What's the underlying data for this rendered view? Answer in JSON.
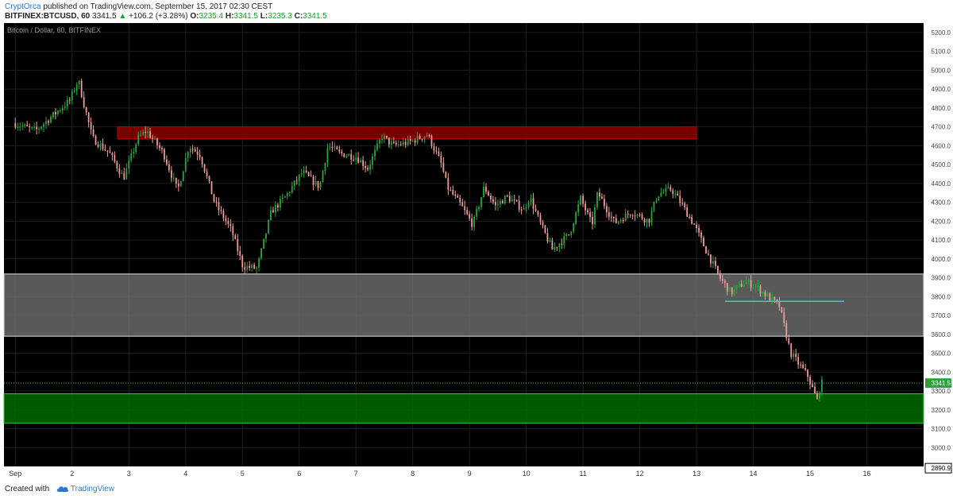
{
  "header": {
    "author": "CryptOrca",
    "published_text": " published on TradingView.com, September 15, 2017 02:30 CEST",
    "symbol": "BITFINEX:BTCUSD, 60",
    "last": "3341.5",
    "change_arrow": "▲",
    "change": "+106.2 (+3.28%)",
    "o_label": "O:",
    "o_value": "3235.4",
    "h_label": "H:",
    "h_value": "3341.5",
    "l_label": "L:",
    "l_value": "3235.3",
    "c_label": "C:",
    "c_value": "3341.5"
  },
  "footer": {
    "created_with": "Created with",
    "brand": "TradingView",
    "logo_icon": "tradingview-cloud-icon"
  },
  "colors": {
    "background": "#000000",
    "bull": "#26a83a",
    "bear": "#f29b9b",
    "resistance_zone": "#8e0000",
    "support_zone": "#006b00",
    "range_zone": "#6f6f6f",
    "cyan_line": "#33cce0",
    "accent_blue": "#2b78d6"
  },
  "chart_data": {
    "type": "candlestick",
    "title": "Bitcoin / Dollar, 60, BITFINEX",
    "ylim": [
      2900,
      5250
    ],
    "y_ticks": [
      "5200.0",
      "5100.0",
      "5000.0",
      "4900.0",
      "4800.0",
      "4700.0",
      "4600.0",
      "4500.0",
      "4400.0",
      "4300.0",
      "4200.0",
      "4100.0",
      "4000.0",
      "3900.0",
      "3800.0",
      "3700.0",
      "3600.0",
      "3500.0",
      "3400.0",
      "3300.0",
      "3200.0",
      "3100.0",
      "3000.0"
    ],
    "x_labels": [
      {
        "day": 0,
        "label": "Sep"
      },
      {
        "day": 1,
        "label": "2"
      },
      {
        "day": 2,
        "label": "3"
      },
      {
        "day": 3,
        "label": "4"
      },
      {
        "day": 4,
        "label": "5"
      },
      {
        "day": 5,
        "label": "6"
      },
      {
        "day": 6,
        "label": "7"
      },
      {
        "day": 7,
        "label": "8"
      },
      {
        "day": 8,
        "label": "9"
      },
      {
        "day": 9,
        "label": "10"
      },
      {
        "day": 10,
        "label": "11"
      },
      {
        "day": 11,
        "label": "12"
      },
      {
        "day": 12,
        "label": "13"
      },
      {
        "day": 13,
        "label": "14"
      },
      {
        "day": 14,
        "label": "15"
      },
      {
        "day": 15,
        "label": "16"
      }
    ],
    "x_range_days": [
      -0.2,
      16.0
    ],
    "last_price": 3341.5,
    "last_price_label": "3341.5",
    "low_marker": 2890.9,
    "low_marker_label": "2890.9",
    "zones": [
      {
        "kind": "resistance",
        "x0": 1.8,
        "x1": 12.0,
        "y0": 4635,
        "y1": 4700
      },
      {
        "kind": "range",
        "x0": -0.2,
        "x1": 16.0,
        "y0": 3590,
        "y1": 3920
      },
      {
        "kind": "support",
        "x0": -0.2,
        "x1": 16.0,
        "y0": 3130,
        "y1": 3285
      }
    ],
    "lines": [
      {
        "kind": "cyan",
        "x0": 12.5,
        "x1": 14.6,
        "y": 3775
      }
    ],
    "price_path": [
      [
        0.0,
        4720
      ],
      [
        0.4,
        4680
      ],
      [
        0.7,
        4760
      ],
      [
        1.0,
        4840
      ],
      [
        1.15,
        4950
      ],
      [
        1.25,
        4820
      ],
      [
        1.4,
        4640
      ],
      [
        1.7,
        4560
      ],
      [
        1.95,
        4430
      ],
      [
        2.2,
        4640
      ],
      [
        2.35,
        4680
      ],
      [
        2.65,
        4560
      ],
      [
        2.9,
        4360
      ],
      [
        3.1,
        4600
      ],
      [
        3.3,
        4550
      ],
      [
        3.55,
        4300
      ],
      [
        3.85,
        4150
      ],
      [
        4.05,
        3960
      ],
      [
        4.3,
        3950
      ],
      [
        4.55,
        4250
      ],
      [
        4.8,
        4330
      ],
      [
        5.1,
        4460
      ],
      [
        5.4,
        4380
      ],
      [
        5.55,
        4600
      ],
      [
        5.75,
        4560
      ],
      [
        6.05,
        4540
      ],
      [
        6.25,
        4480
      ],
      [
        6.5,
        4650
      ],
      [
        6.7,
        4600
      ],
      [
        7.0,
        4620
      ],
      [
        7.3,
        4660
      ],
      [
        7.55,
        4500
      ],
      [
        7.65,
        4380
      ],
      [
        7.9,
        4280
      ],
      [
        8.1,
        4180
      ],
      [
        8.3,
        4380
      ],
      [
        8.5,
        4280
      ],
      [
        8.7,
        4330
      ],
      [
        9.0,
        4260
      ],
      [
        9.1,
        4330
      ],
      [
        9.3,
        4180
      ],
      [
        9.5,
        4050
      ],
      [
        9.8,
        4130
      ],
      [
        10.0,
        4320
      ],
      [
        10.2,
        4180
      ],
      [
        10.3,
        4350
      ],
      [
        10.6,
        4190
      ],
      [
        10.9,
        4250
      ],
      [
        11.2,
        4200
      ],
      [
        11.35,
        4340
      ],
      [
        11.6,
        4370
      ],
      [
        11.8,
        4280
      ],
      [
        12.0,
        4180
      ],
      [
        12.2,
        4050
      ],
      [
        12.45,
        3900
      ],
      [
        12.65,
        3820
      ],
      [
        12.9,
        3880
      ],
      [
        13.1,
        3850
      ],
      [
        13.3,
        3800
      ],
      [
        13.5,
        3750
      ],
      [
        13.7,
        3500
      ],
      [
        13.85,
        3440
      ],
      [
        14.0,
        3380
      ],
      [
        14.1,
        3300
      ],
      [
        14.18,
        3240
      ],
      [
        14.22,
        3341.5
      ]
    ]
  }
}
